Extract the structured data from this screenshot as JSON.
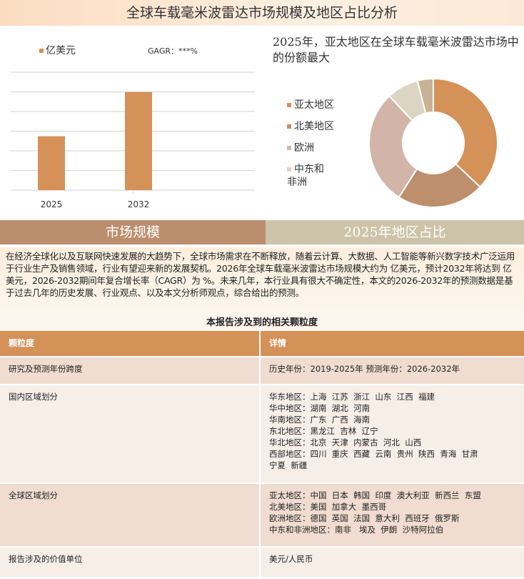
{
  "title": "全球车载毫米波雷达市场规模及地区占比分析",
  "bar_chart": {
    "chart_data": {
      "type": "bar",
      "categories": [
        "2025",
        "2032"
      ],
      "values": [
        2.74,
        4.99
      ],
      "ylim": [
        0,
        6
      ],
      "grid": true,
      "legend": "亿美元",
      "annotation": "GAGR：***%",
      "color": "#d49158"
    }
  },
  "bar_legend": {
    "label": "亿美元",
    "gagr_label": "GAGR：",
    "gagr_value": "***%"
  },
  "pie": {
    "title": "2025年，亚太地区在全球车载毫米波雷达市场中的份额最大",
    "chart_data": {
      "type": "pie",
      "donut": true,
      "values": [
        37,
        22,
        29,
        8,
        4
      ],
      "categories": [
        "亚太地区",
        "北美地区",
        "欧洲",
        "中东和非洲",
        ""
      ],
      "colors": [
        "#d49158",
        "#bd8f6c",
        "#d2b4a8",
        "#ddd5c4",
        "#c8b294"
      ],
      "legend": "left"
    }
  },
  "sections": {
    "left": "市场规模",
    "right": "2025年地区占比"
  },
  "paragraph": "在经济全球化以及互联网快速发展的大趋势下，全球市场需求在不断释放，随着云计算、大数据、人工智能等新兴数字技术广泛运用于行业生产及销售领域，行业有望迎来新的发展契机。2026年全球车载毫米波雷达市场规模大约为 亿美元，预计2032年将达到 亿美元，2026-2032期间年复合增长率（CAGR）为 %。未来几年，本行业具有很大不确定性，本文的2026-2032年的预测数据是基于过去几年的历史发展、行业观点、以及本文分析师观点，综合给出的预测。",
  "table": {
    "title": "本报告涉及到的相关颗粒度",
    "headers": [
      "颗粒度",
      "详情"
    ],
    "rows": [
      {
        "k": "研究及预测年份跨度",
        "v": [
          "历史年份：2019-2025年 预测年份：2026-2032年"
        ]
      },
      {
        "k": "国内区域划分",
        "v": [
          "华东地区：上海  江苏  浙江  山东  江西  福建",
          "华中地区：湖南  湖北  河南",
          "华南地区：广东  广西  海南",
          "东北地区：黑龙江  吉林  辽宁",
          "华北地区：北京  天津  内蒙古  河北  山西",
          "西部地区：四川  重庆  西藏  云南  贵州  陕西  青海  甘肃",
          "宁夏  新疆"
        ]
      },
      {
        "k": "全球区域划分",
        "v": [
          "亚太地区：中国  日本  韩国  印度  澳大利亚  新西兰  东盟",
          "北美地区：美国  加拿大  墨西哥",
          "欧洲地区：德国  英国  法国  意大利  西班牙  俄罗斯",
          "中东和非洲地区：南非   埃及  伊朗  沙特阿拉伯"
        ]
      },
      {
        "k": "报告涉及的价值单位",
        "v": [
          "美元/人民币"
        ]
      }
    ]
  }
}
